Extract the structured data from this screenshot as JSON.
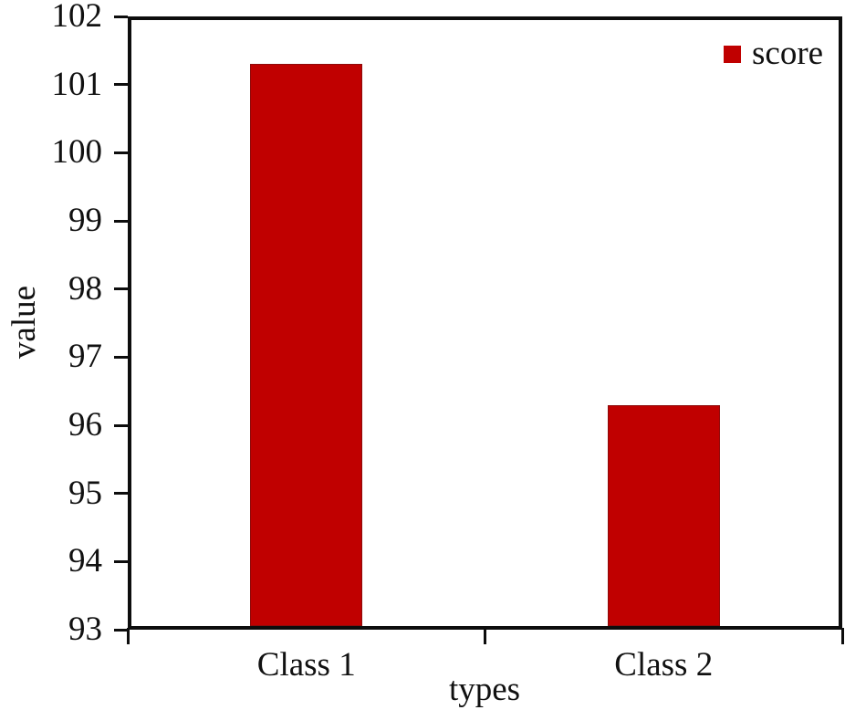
{
  "chart_data": {
    "type": "bar",
    "title": "",
    "categories": [
      "Class 1",
      "Class 2"
    ],
    "series": [
      {
        "name": "score",
        "values": [
          101.3,
          96.3
        ]
      }
    ],
    "xlabel": "types",
    "ylabel": "value",
    "ylim": [
      93,
      102
    ],
    "yticks": [
      102,
      101,
      100,
      99,
      98,
      97,
      96,
      95,
      94,
      93
    ],
    "grid": false,
    "legend_position": "top-right-inside",
    "bar_color": "#c00000",
    "bar_edge_color": "#8e0b0b",
    "axis_color": "#0d0d0d",
    "bar_width_frac": 0.315
  }
}
